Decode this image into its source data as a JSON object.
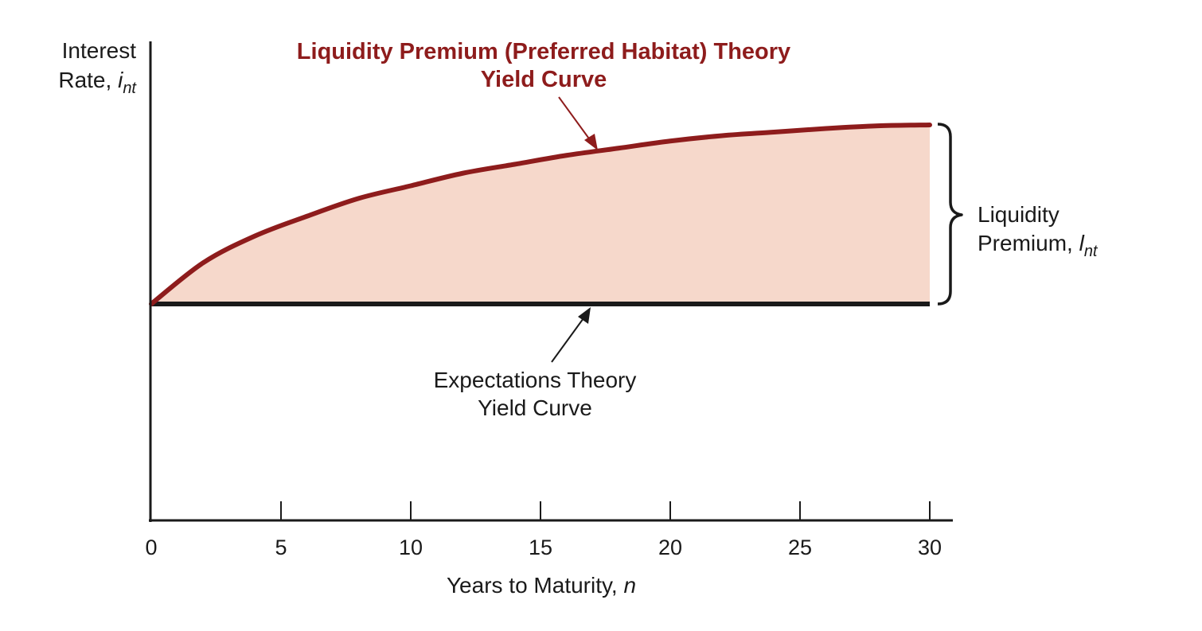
{
  "chart_data": {
    "type": "area",
    "x_axis": {
      "label": "Years to Maturity,",
      "label_var": "n",
      "ticks": [
        0,
        5,
        10,
        15,
        20,
        25,
        30
      ],
      "range": [
        0,
        30
      ]
    },
    "y_axis": {
      "label_line1": "Interest",
      "label_line2": "Rate,",
      "label_var": "i",
      "label_sub": "nt"
    },
    "series": [
      {
        "name_line1": "Liquidity Premium (Preferred Habitat) Theory",
        "name_line2": "Yield Curve",
        "x": [
          0,
          2,
          4,
          6,
          8,
          10,
          12,
          14,
          16,
          18,
          20,
          22,
          24,
          26,
          28,
          30
        ],
        "y": [
          0.0,
          0.23,
          0.38,
          0.49,
          0.59,
          0.66,
          0.73,
          0.78,
          0.83,
          0.87,
          0.91,
          0.94,
          0.96,
          0.98,
          0.995,
          1.0
        ],
        "color": "#8e1c1c",
        "fill": "#f6d8cb"
      },
      {
        "name_line1": "Expectations Theory",
        "name_line2": "Yield Curve",
        "x": [
          0,
          30
        ],
        "y": [
          0.0,
          0.0
        ],
        "color": "#1a1a1a"
      }
    ],
    "bracket_label": {
      "line1": "Liquidity",
      "line2": "Premium,",
      "var": "l",
      "sub": "nt"
    },
    "grid": false
  }
}
